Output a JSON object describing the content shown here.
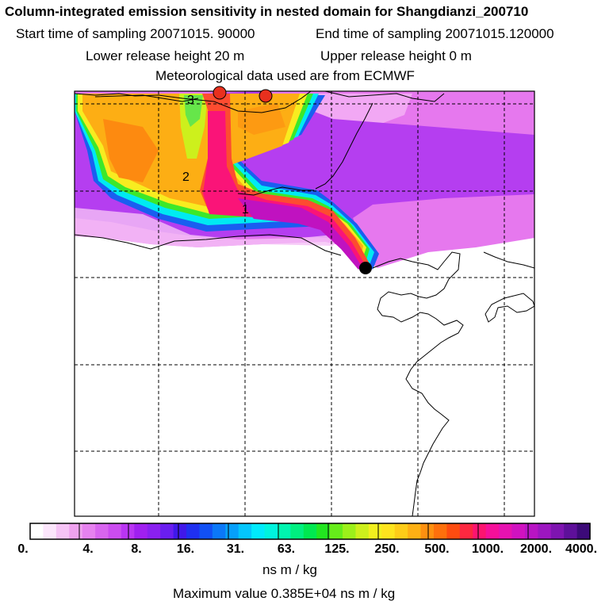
{
  "header": {
    "title": "Column-integrated emission sensitivity in nested domain for Shangdianzi_200710",
    "start_time": "Start time of sampling 20071015. 90000",
    "end_time": "End time of sampling 20071015.120000",
    "lower_release": "Lower release height   20 m",
    "upper_release": "Upper release height    0 m",
    "met_data": "Meteorological data used are from ECMWF"
  },
  "map": {
    "day_markers": [
      "1",
      "2",
      "3"
    ],
    "release_site_color": "#000000",
    "plume_marker_color": "#e8301e"
  },
  "colorbar": {
    "labels": [
      "0.",
      "4.",
      "8.",
      "16.",
      "31.",
      "63.",
      "125.",
      "250.",
      "500.",
      "1000.",
      "2000.",
      "4000."
    ],
    "unit": "ns m / kg",
    "colors": [
      "#ffffff",
      "#fce6fc",
      "#f6c4f6",
      "#efa2ef",
      "#e682ef",
      "#d865ef",
      "#cb4cf0",
      "#b935f3",
      "#a020f0",
      "#8a20f0",
      "#6a1ef0",
      "#4018ea",
      "#1f30f0",
      "#1150f5",
      "#0b78f8",
      "#06a0fb",
      "#04c6fc",
      "#00eafc",
      "#00f4de",
      "#00f4b0",
      "#00ef80",
      "#00e850",
      "#22e620",
      "#66ec1a",
      "#9cf01a",
      "#cdf01c",
      "#f2f01e",
      "#fde41e",
      "#fdcc18",
      "#fdb014",
      "#fd9010",
      "#fd700c",
      "#fd4c10",
      "#fd2840",
      "#fd1470",
      "#f5109a",
      "#e612b0",
      "#d012c0",
      "#b814c4",
      "#9c16c0",
      "#7e14b0",
      "#5e109a",
      "#3c0a78"
    ]
  },
  "footer": {
    "max_value": "Maximum value  0.385E+04 ns m / kg"
  }
}
